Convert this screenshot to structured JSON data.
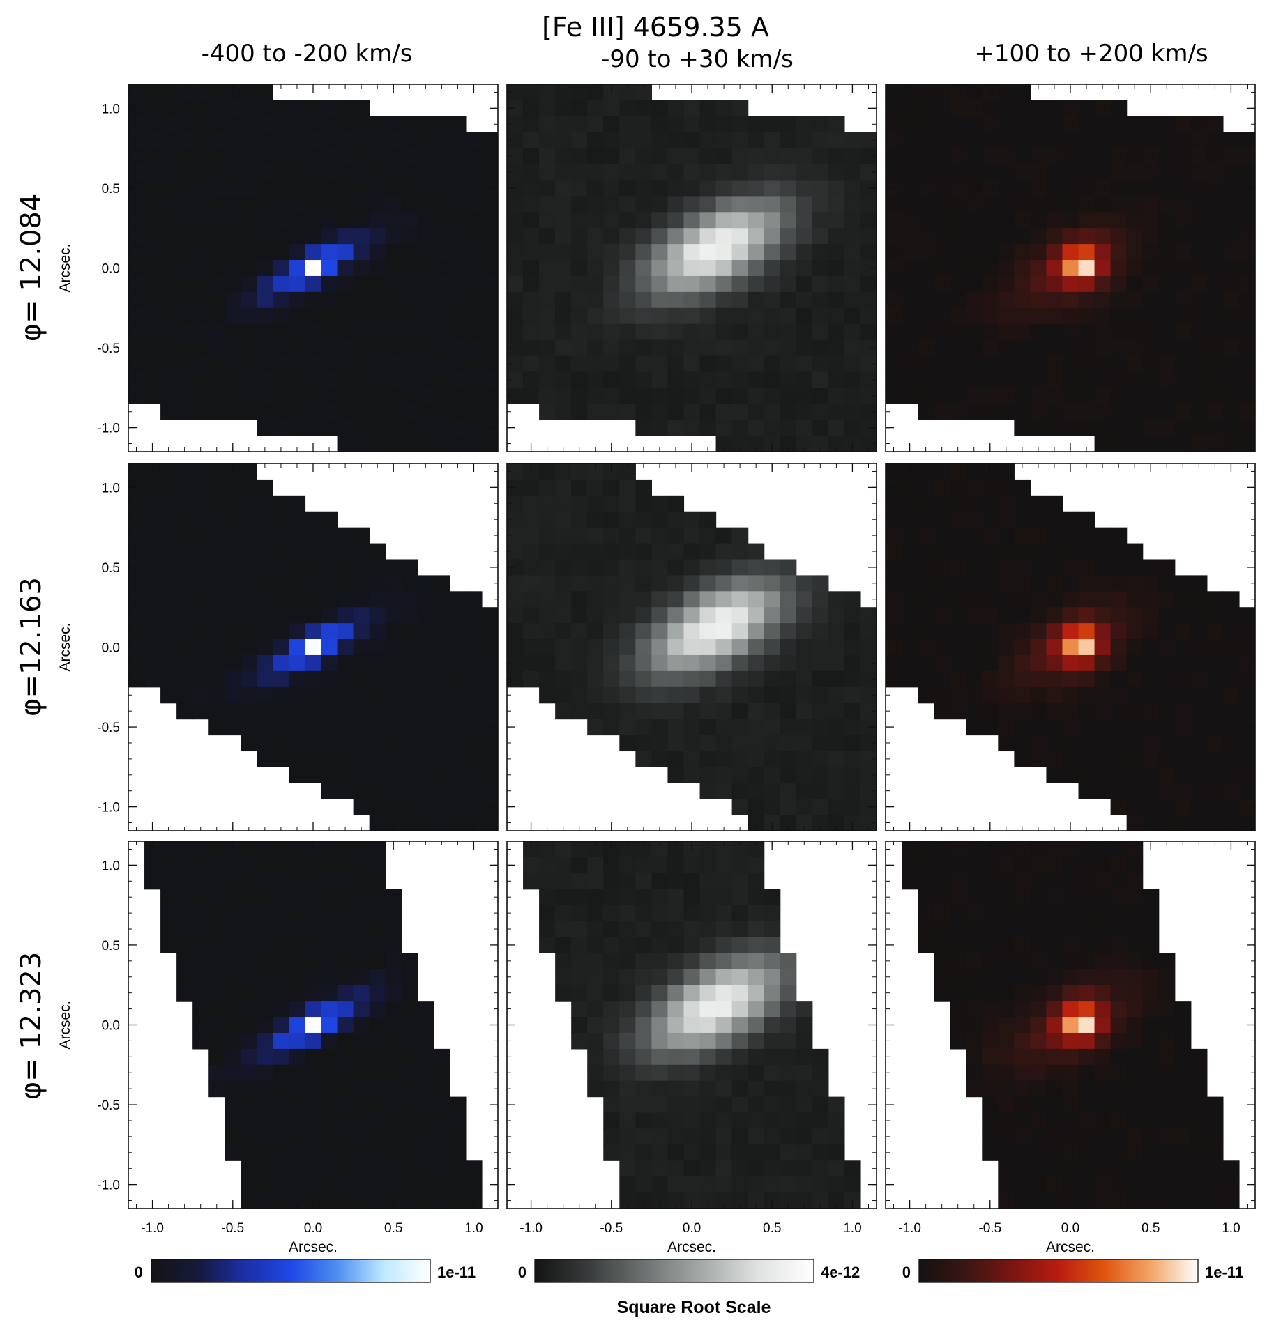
{
  "title": "[Fe III] 4659.35 A",
  "columns": [
    {
      "title": "-400 to -200 km/s",
      "cmap": "blue",
      "cbar_min": "0",
      "cbar_max": "1e-11",
      "colors": [
        "#131416",
        "#16193a",
        "#1b2fa6",
        "#1f47e6",
        "#4d8ff0",
        "#bfe8ff",
        "#ffffff"
      ]
    },
    {
      "title": "-90 to +30 km/s",
      "cmap": "gray",
      "cbar_min": "0",
      "cbar_max": "4e-12",
      "colors": [
        "#131414",
        "#3a3d3d",
        "#6f7574",
        "#a4aaa8",
        "#dfe2e0",
        "#ffffff"
      ]
    },
    {
      "title": "+100 to +200 km/s",
      "cmap": "red",
      "cbar_min": "0",
      "cbar_max": "1e-11",
      "colors": [
        "#141212",
        "#3a1613",
        "#7a1512",
        "#b81d10",
        "#e0560f",
        "#f2a768",
        "#ffffff"
      ]
    }
  ],
  "rows": [
    {
      "label": "φ= 12.084",
      "mask": "hex"
    },
    {
      "label": "φ=12.163",
      "mask": "band"
    },
    {
      "label": "φ= 12.323",
      "mask": "para"
    }
  ],
  "axes": {
    "xlabel": "Arcsec.",
    "ylabel": "Arcsec.",
    "xlim": [
      -1.15,
      1.15
    ],
    "ylim": [
      -1.15,
      1.15
    ],
    "ticks": [
      -1.0,
      -0.5,
      0.0,
      0.5,
      1.0
    ],
    "tick_labels": [
      "-1.0",
      "-0.5",
      "0.0",
      "0.5",
      "1.0"
    ]
  },
  "scale_label": "Square Root Scale"
}
